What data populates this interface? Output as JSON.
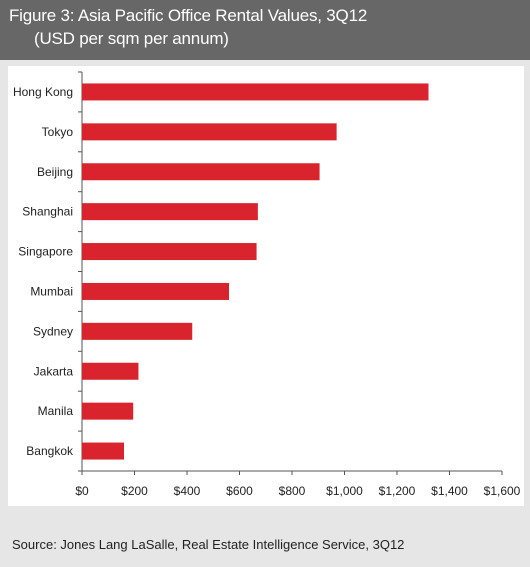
{
  "figure": {
    "title": "Figure 3: Asia Pacific Office Rental Values, 3Q12",
    "subtitle": "(USD per sqm per annum)",
    "source": "Source: Jones Lang LaSalle, Real Estate Intelligence Service, 3Q12"
  },
  "chart_data": {
    "type": "bar",
    "orientation": "horizontal",
    "categories": [
      "Hong Kong",
      "Tokyo",
      "Beijing",
      "Shanghai",
      "Singapore",
      "Mumbai",
      "Sydney",
      "Jakarta",
      "Manila",
      "Bangkok"
    ],
    "values": [
      1320,
      970,
      905,
      670,
      665,
      560,
      420,
      215,
      195,
      160
    ],
    "xlim": [
      0,
      1600
    ],
    "xticks": [
      0,
      200,
      400,
      600,
      800,
      1000,
      1200,
      1400,
      1600
    ],
    "xtick_labels": [
      "$0",
      "$200",
      "$400",
      "$600",
      "$800",
      "$1,000",
      "$1,200",
      "$1,400",
      "$1,600"
    ],
    "bar_color": "#d9232d",
    "grid": false,
    "legend": "none"
  }
}
